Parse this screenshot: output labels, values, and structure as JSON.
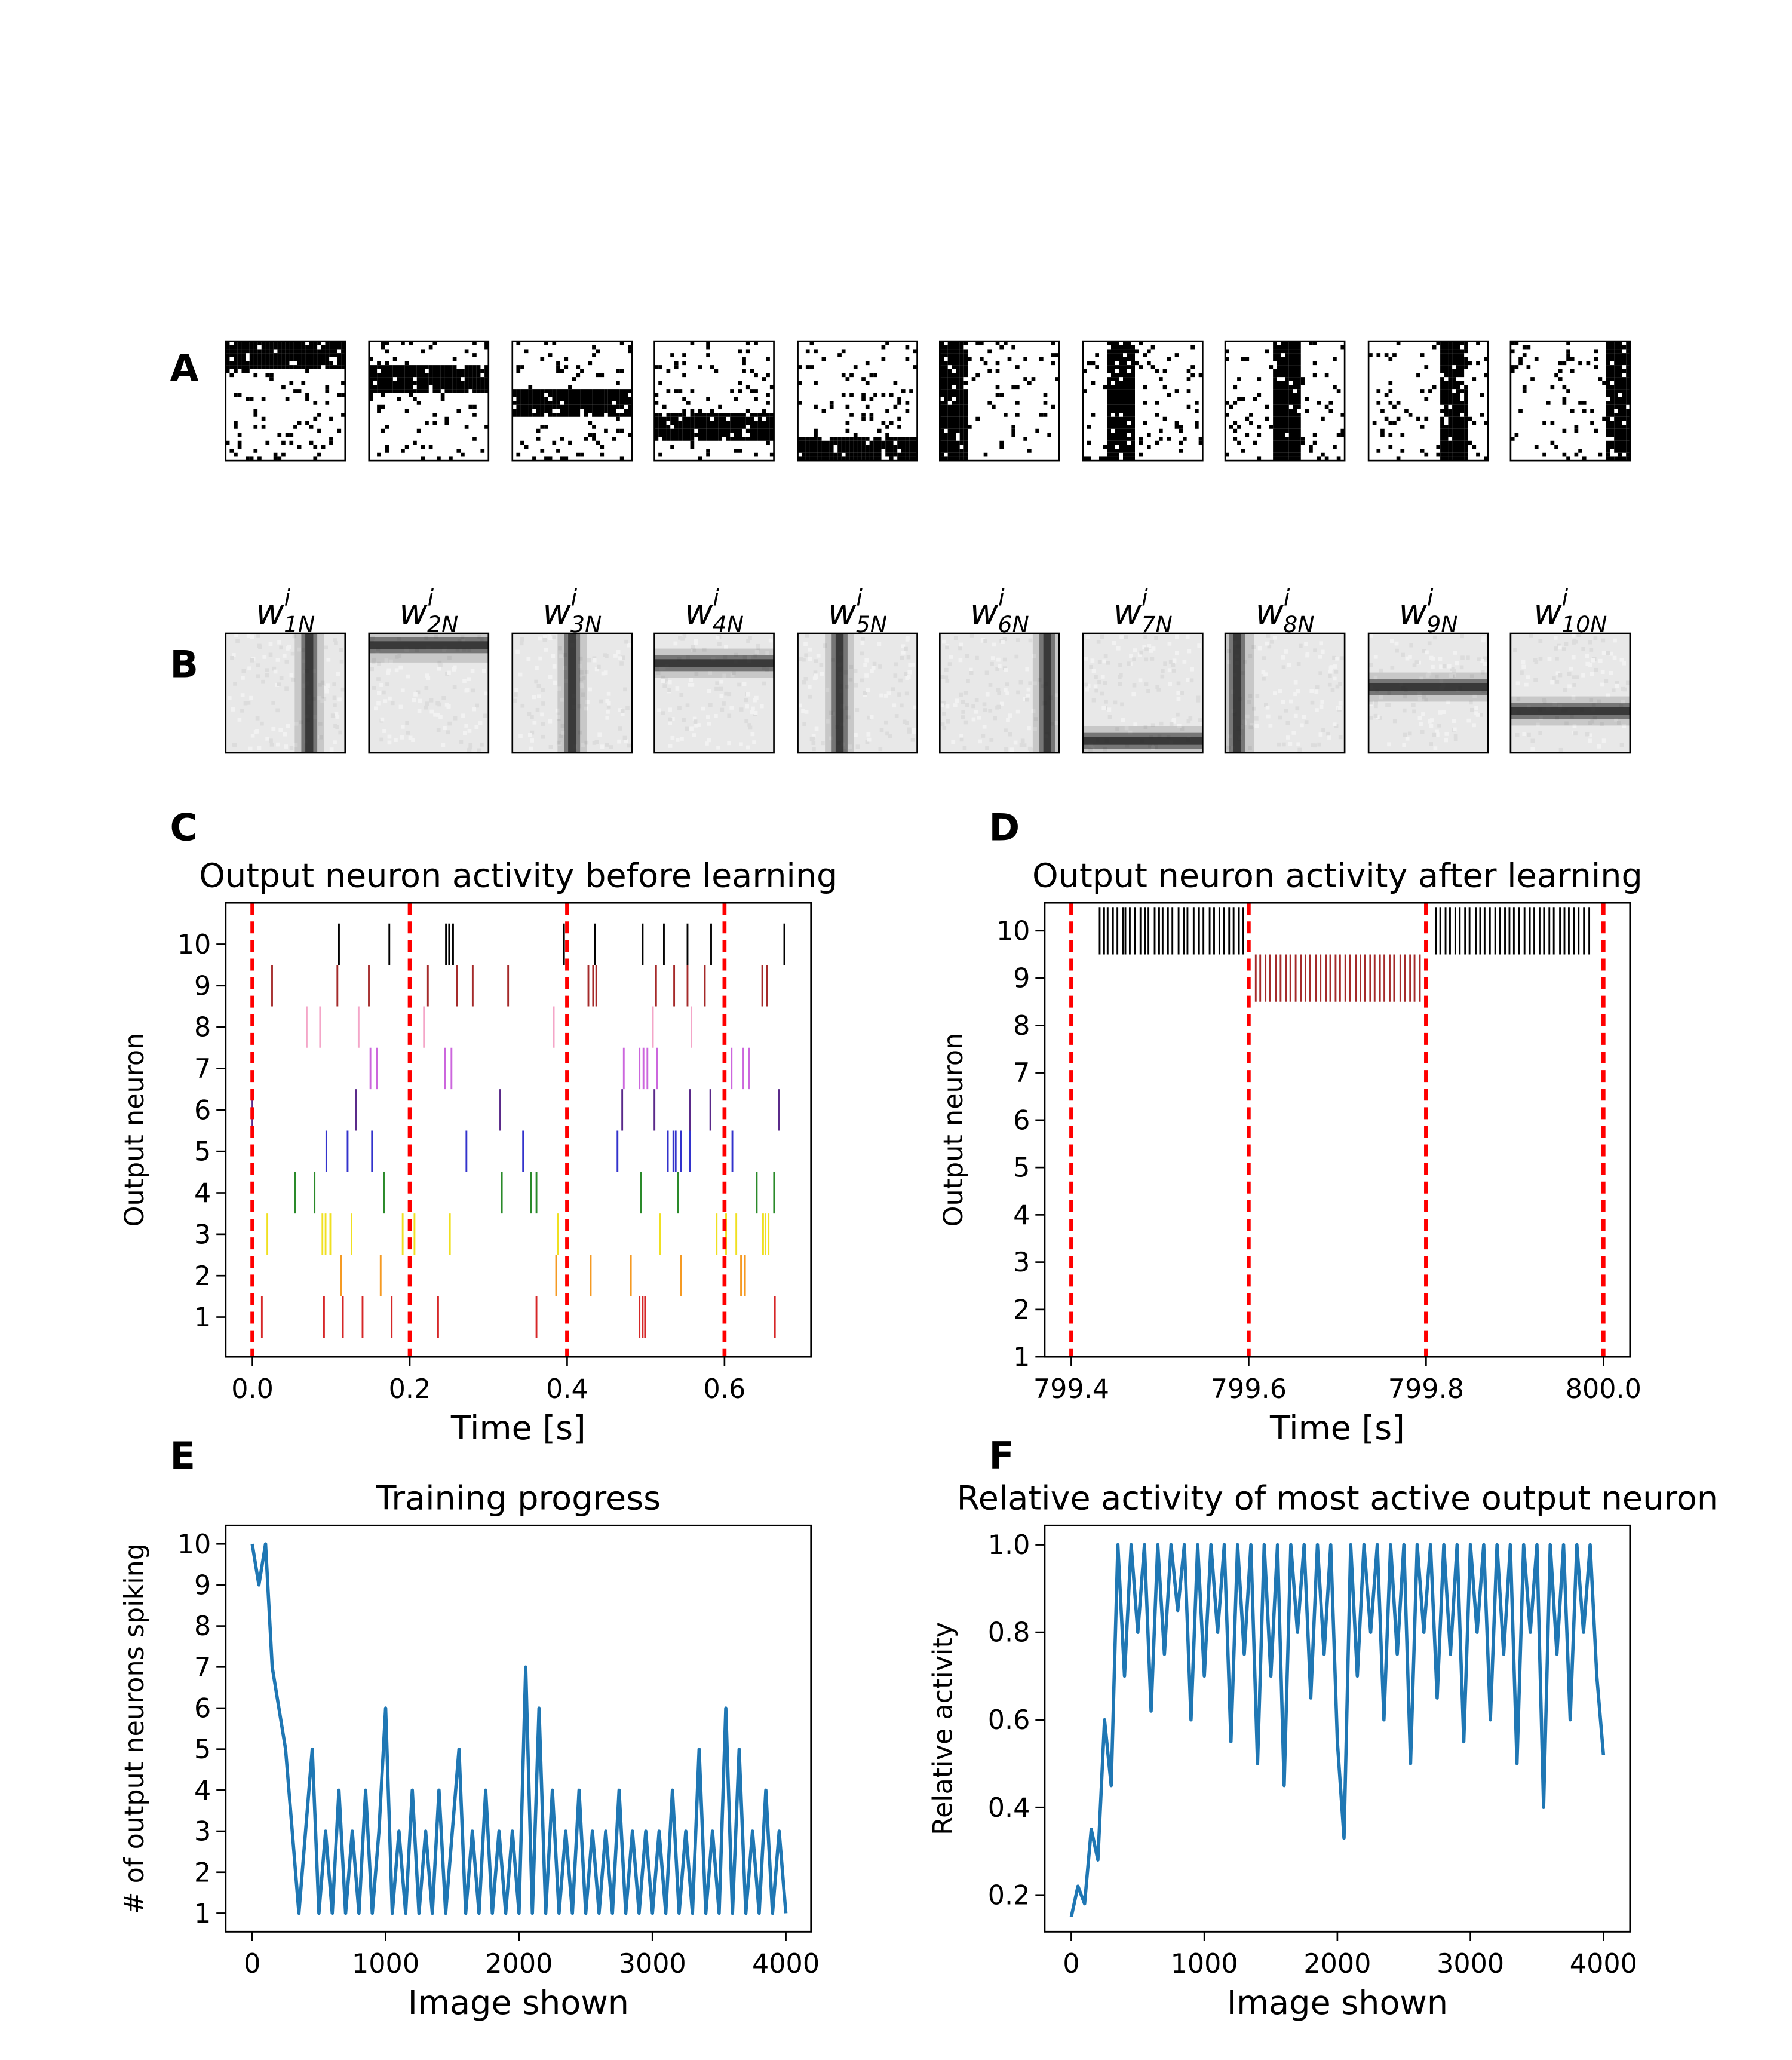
{
  "panels": {
    "A": {
      "label": "A"
    },
    "B": {
      "label": "B",
      "weights": [
        {
          "base": "w",
          "sup": "i",
          "sub": "1N"
        },
        {
          "base": "w",
          "sup": "i",
          "sub": "2N"
        },
        {
          "base": "w",
          "sup": "i",
          "sub": "3N"
        },
        {
          "base": "w",
          "sup": "i",
          "sub": "4N"
        },
        {
          "base": "w",
          "sup": "i",
          "sub": "5N"
        },
        {
          "base": "w",
          "sup": "i",
          "sub": "6N"
        },
        {
          "base": "w",
          "sup": "i",
          "sub": "7N"
        },
        {
          "base": "w",
          "sup": "i",
          "sub": "8N"
        },
        {
          "base": "w",
          "sup": "i",
          "sub": "9N"
        },
        {
          "base": "w",
          "sup": "i",
          "sub": "10N"
        }
      ]
    }
  },
  "chart_data": [
    {
      "type": "raster",
      "panel_label": "C",
      "title": "Output neuron activity before learning",
      "xlabel": "Time [s]",
      "ylabel": "Output neuron",
      "xlim": [
        -0.034,
        0.71
      ],
      "ylim": [
        0.04,
        11.0
      ],
      "xticks": [
        {
          "value": 0,
          "label": "0.0"
        },
        0.2,
        0.4,
        0.6
      ],
      "yticks": [
        1,
        2,
        3,
        4,
        5,
        6,
        7,
        8,
        9,
        10
      ],
      "vlines": [
        0,
        0.2,
        0.4,
        0.6
      ],
      "vline_color": "#ff0000",
      "series": [
        {
          "y": 1,
          "color": "#d62728",
          "values": [
            0.012,
            0.091,
            0.115,
            0.14,
            0.177,
            0.236,
            0.361,
            0.492,
            0.496,
            0.499,
            0.664
          ]
        },
        {
          "y": 2,
          "color": "#f59a23",
          "values": [
            0.113,
            0.163,
            0.386,
            0.43,
            0.481,
            0.545,
            0.621,
            0.626
          ]
        },
        {
          "y": 3,
          "color": "#f0e020",
          "values": [
            0.019,
            0.089,
            0.093,
            0.099,
            0.126,
            0.191,
            0.206,
            0.251,
            0.388,
            0.518,
            0.59,
            0.602,
            0.615,
            0.649,
            0.652,
            0.656
          ]
        },
        {
          "y": 4,
          "color": "#2a8a2a",
          "values": [
            0.054,
            0.079,
            0.167,
            0.317,
            0.354,
            0.361,
            0.494,
            0.541,
            0.641,
            0.663
          ]
        },
        {
          "y": 5,
          "color": "#3333cc",
          "values": [
            0.094,
            0.121,
            0.152,
            0.272,
            0.344,
            0.464,
            0.528,
            0.535,
            0.538,
            0.545,
            0.556,
            0.61
          ]
        },
        {
          "y": 6,
          "color": "#5a2a8a",
          "values": [
            0.0,
            0.132,
            0.315,
            0.47,
            0.511,
            0.556,
            0.582,
            0.669
          ]
        },
        {
          "y": 7,
          "color": "#cc66dd",
          "values": [
            0.15,
            0.158,
            0.245,
            0.253,
            0.472,
            0.492,
            0.497,
            0.502,
            0.514,
            0.609,
            0.624,
            0.631
          ]
        },
        {
          "y": 8,
          "color": "#f4a6c8",
          "values": [
            0.069,
            0.086,
            0.135,
            0.218,
            0.383,
            0.509,
            0.558
          ]
        },
        {
          "y": 9,
          "color": "#a52a2a",
          "values": [
            0.025,
            0.108,
            0.148,
            0.223,
            0.26,
            0.28,
            0.325,
            0.427,
            0.433,
            0.437,
            0.513,
            0.536,
            0.553,
            0.575,
            0.648,
            0.654
          ]
        },
        {
          "y": 10,
          "color": "#000000",
          "values": [
            0.11,
            0.174,
            0.246,
            0.25,
            0.255,
            0.396,
            0.435,
            0.496,
            0.523,
            0.553,
            0.583,
            0.676
          ]
        }
      ]
    },
    {
      "type": "raster",
      "panel_label": "D",
      "title": "Output neuron activity after learning",
      "xlabel": "Time [s]",
      "ylabel": "Output neuron",
      "xlim": [
        799.37,
        800.03
      ],
      "ylim": [
        1,
        10.59
      ],
      "xticks": [
        799.4,
        799.6,
        799.8,
        {
          "value": 800,
          "label": "800.0"
        }
      ],
      "yticks": [
        1,
        2,
        3,
        4,
        5,
        6,
        7,
        8,
        9,
        10
      ],
      "vlines": [
        799.4,
        799.6,
        799.8,
        800
      ],
      "vline_color": "#ff0000",
      "series": [
        {
          "y": 9,
          "color": "#a52a2a",
          "values": [
            799.608,
            799.613,
            799.619,
            799.624,
            799.631,
            799.636,
            799.642,
            799.647,
            799.653,
            799.659,
            799.664,
            799.669,
            799.676,
            799.681,
            799.687,
            799.692,
            799.698,
            799.703,
            799.709,
            799.714,
            799.721,
            799.726,
            799.731,
            799.737,
            799.742,
            799.748,
            799.753,
            799.759,
            799.764,
            799.771,
            799.776,
            799.782,
            799.787,
            799.793
          ]
        },
        {
          "y": 10,
          "color": "#000000",
          "values": [
            799.432,
            799.437,
            799.441,
            799.447,
            799.452,
            799.458,
            799.461,
            799.466,
            799.472,
            799.478,
            799.483,
            799.487,
            799.494,
            799.499,
            799.503,
            799.509,
            799.514,
            799.521,
            799.527,
            799.531,
            799.538,
            799.544,
            799.549,
            799.556,
            799.561,
            799.567,
            799.572,
            799.578,
            799.583,
            799.589,
            799.594,
            799.811,
            799.816,
            799.822,
            799.827,
            799.833,
            799.838,
            799.844,
            799.849,
            799.856,
            799.861,
            799.866,
            799.872,
            799.878,
            799.883,
            799.889,
            799.894,
            799.899,
            799.905,
            799.911,
            799.917,
            799.922,
            799.928,
            799.933,
            799.939,
            799.944,
            799.951,
            799.956,
            799.961,
            799.967,
            799.972,
            799.978,
            799.984
          ]
        }
      ]
    },
    {
      "type": "line",
      "panel_label": "E",
      "title": "Training progress",
      "xlabel": "Image shown",
      "ylabel": "# of output neurons spiking",
      "xlim": [
        -199,
        4189
      ],
      "ylim": [
        0.55,
        10.45
      ],
      "xticks": [
        0,
        1000,
        2000,
        3000,
        4000
      ],
      "yticks": [
        1,
        2,
        3,
        4,
        5,
        6,
        7,
        8,
        9,
        10
      ],
      "color": "#1f77b4",
      "x": [
        0,
        50,
        100,
        150,
        200,
        250,
        300,
        350,
        400,
        450,
        500,
        550,
        600,
        650,
        700,
        750,
        800,
        850,
        900,
        950,
        1000,
        1050,
        1100,
        1150,
        1200,
        1250,
        1300,
        1350,
        1400,
        1450,
        1500,
        1550,
        1600,
        1650,
        1700,
        1750,
        1800,
        1850,
        1900,
        1950,
        2000,
        2050,
        2100,
        2150,
        2200,
        2250,
        2300,
        2350,
        2400,
        2450,
        2500,
        2550,
        2600,
        2650,
        2700,
        2750,
        2800,
        2850,
        2900,
        2950,
        3000,
        3050,
        3100,
        3150,
        3200,
        3250,
        3300,
        3350,
        3400,
        3450,
        3500,
        3550,
        3600,
        3650,
        3700,
        3750,
        3800,
        3850,
        3900,
        3950,
        4000
      ],
      "values": [
        10,
        9,
        10,
        7,
        6,
        5,
        3,
        1,
        3,
        5,
        1,
        3,
        1,
        4,
        1,
        3,
        1,
        4,
        1,
        3,
        6,
        1,
        3,
        1,
        4,
        1,
        3,
        1,
        4,
        1,
        3,
        5,
        1,
        3,
        1,
        4,
        1,
        3,
        1,
        3,
        1,
        7,
        1,
        6,
        1,
        4,
        1,
        3,
        1,
        4,
        1,
        3,
        1,
        3,
        1,
        4,
        1,
        3,
        1,
        3,
        1,
        3,
        1,
        4,
        1,
        3,
        1,
        5,
        1,
        3,
        1,
        6,
        1,
        5,
        1,
        3,
        1,
        4,
        1,
        3,
        1
      ]
    },
    {
      "type": "line",
      "panel_label": "F",
      "title": "Relative activity of most active output neuron",
      "xlabel": "Image shown",
      "ylabel": "Relative activity",
      "xlim": [
        -200,
        4200
      ],
      "ylim": [
        0.116,
        1.044
      ],
      "xticks": [
        0,
        1000,
        2000,
        3000,
        4000
      ],
      "yticks": [
        0.2,
        0.4,
        0.6,
        0.8,
        {
          "value": 1,
          "label": "1.0"
        }
      ],
      "color": "#1f77b4",
      "x": [
        0,
        50,
        100,
        150,
        200,
        250,
        300,
        350,
        400,
        450,
        500,
        550,
        600,
        650,
        700,
        750,
        800,
        850,
        900,
        950,
        1000,
        1050,
        1100,
        1150,
        1200,
        1250,
        1300,
        1350,
        1400,
        1450,
        1500,
        1550,
        1600,
        1650,
        1700,
        1750,
        1800,
        1850,
        1900,
        1950,
        2000,
        2050,
        2100,
        2150,
        2200,
        2250,
        2300,
        2350,
        2400,
        2450,
        2500,
        2550,
        2600,
        2650,
        2700,
        2750,
        2800,
        2850,
        2900,
        2950,
        3000,
        3050,
        3100,
        3150,
        3200,
        3250,
        3300,
        3350,
        3400,
        3450,
        3500,
        3550,
        3600,
        3650,
        3700,
        3750,
        3800,
        3850,
        3900,
        3950,
        4000
      ],
      "values": [
        0.15,
        0.22,
        0.18,
        0.35,
        0.28,
        0.6,
        0.45,
        1.0,
        0.7,
        1.0,
        0.8,
        1.0,
        0.62,
        1.0,
        0.75,
        1.0,
        0.85,
        1.0,
        0.6,
        1.0,
        0.7,
        1.0,
        0.8,
        1.0,
        0.55,
        1.0,
        0.75,
        1.0,
        0.5,
        1.0,
        0.7,
        1.0,
        0.45,
        1.0,
        0.8,
        1.0,
        0.65,
        1.0,
        0.75,
        1.0,
        0.55,
        0.33,
        1.0,
        0.7,
        1.0,
        0.8,
        1.0,
        0.6,
        1.0,
        0.75,
        1.0,
        0.5,
        1.0,
        0.8,
        1.0,
        0.65,
        1.0,
        0.75,
        1.0,
        0.55,
        1.0,
        0.8,
        1.0,
        0.6,
        1.0,
        0.75,
        1.0,
        0.5,
        1.0,
        0.8,
        1.0,
        0.4,
        1.0,
        0.75,
        1.0,
        0.6,
        1.0,
        0.8,
        1.0,
        0.7,
        0.52
      ]
    }
  ]
}
